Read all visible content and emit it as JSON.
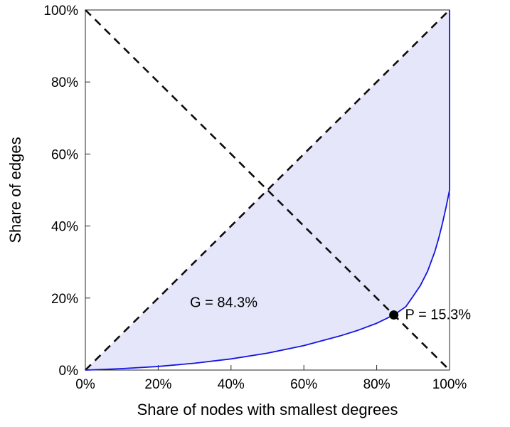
{
  "figure": {
    "background": "#ffffff"
  },
  "chart_data": {
    "type": "line",
    "title": "",
    "xlabel": "Share of nodes with smallest degrees",
    "ylabel": "Share of edges",
    "xlim": [
      0,
      100
    ],
    "ylim": [
      0,
      100
    ],
    "grid": false,
    "legend": "none",
    "x_ticks": [
      "0%",
      "20%",
      "40%",
      "60%",
      "80%",
      "100%"
    ],
    "x_tick_values": [
      0,
      20,
      40,
      60,
      80,
      100
    ],
    "y_ticks": [
      "0%",
      "20%",
      "40%",
      "60%",
      "80%",
      "100%"
    ],
    "y_tick_values": [
      0,
      20,
      40,
      60,
      80,
      100
    ],
    "axes": {
      "box_color": "#262626",
      "text_color": "#000000",
      "tick_font_size": 19
    },
    "fill": {
      "name": "gini-area",
      "color": "#e6e6fb",
      "description": "shaded area between equality diagonal and Lorenz curve"
    },
    "series": [
      {
        "name": "lorenz-curve",
        "style": "solid",
        "color": "#1515e0",
        "width": 1.8,
        "points": [
          [
            0,
            0
          ],
          [
            10,
            0.4
          ],
          [
            20,
            1.0
          ],
          [
            30,
            1.9
          ],
          [
            40,
            3.1
          ],
          [
            50,
            4.7
          ],
          [
            60,
            6.8
          ],
          [
            70,
            9.5
          ],
          [
            75,
            11.1
          ],
          [
            80,
            13.0
          ],
          [
            84.7,
            15.3
          ],
          [
            88,
            17.6
          ],
          [
            90,
            20.5
          ],
          [
            92,
            23.5
          ],
          [
            94,
            27.5
          ],
          [
            96,
            33
          ],
          [
            97,
            36.5
          ],
          [
            98,
            40.5
          ],
          [
            99,
            45
          ],
          [
            99.5,
            47.5
          ],
          [
            100,
            50
          ],
          [
            100,
            100
          ]
        ]
      },
      {
        "name": "equality-line",
        "style": "dashed",
        "color": "#0d0d0d",
        "width": 2.6,
        "dash": [
          11,
          8
        ],
        "points": [
          [
            0,
            0
          ],
          [
            100,
            100
          ]
        ]
      },
      {
        "name": "anti-diagonal-line",
        "style": "dashed",
        "color": "#0d0d0d",
        "width": 2.6,
        "dash": [
          11,
          8
        ],
        "points": [
          [
            0,
            100
          ],
          [
            100,
            0
          ]
        ]
      }
    ],
    "point": {
      "name": "pareto-point",
      "x": 84.7,
      "y": 15.3,
      "radius": 6.5,
      "color": "#000000"
    },
    "annotations": [
      {
        "name": "gini-label",
        "text": "G = 84.3%",
        "x": 38,
        "y": 17.5,
        "anchor": "middle",
        "font_size": 20
      },
      {
        "name": "pareto-label",
        "text": "P = 15.3%",
        "x": 87.8,
        "y": 14.1,
        "anchor": "start",
        "font_size": 20
      }
    ]
  }
}
